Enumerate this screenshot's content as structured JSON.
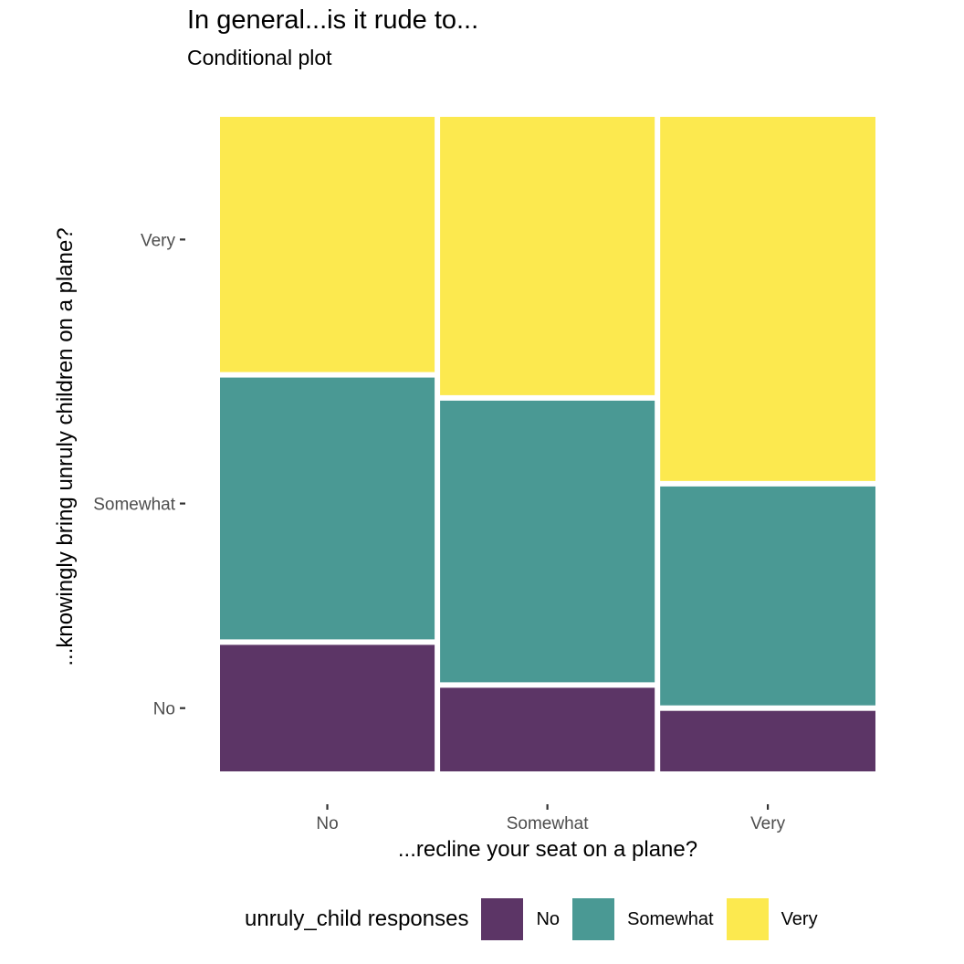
{
  "chart_data": {
    "type": "mosaic",
    "title": "In general...is it rude to...",
    "subtitle": "Conditional plot",
    "xlabel": "...recline your seat on a plane?",
    "ylabel": "...knowingly bring unruly children on a plane?",
    "categories": [
      "No",
      "Somewhat",
      "Very"
    ],
    "column_widths": [
      0.333,
      0.333,
      0.334
    ],
    "y_ticks": [
      {
        "label": "Very",
        "value": 0.81
      },
      {
        "label": "Somewhat",
        "value": 0.41
      },
      {
        "label": "No",
        "value": 0.1
      }
    ],
    "series": [
      {
        "name": "No",
        "color": "#5c3566",
        "values": [
          0.2,
          0.135,
          0.1
        ]
      },
      {
        "name": "Somewhat",
        "color": "#4a9994",
        "values": [
          0.405,
          0.435,
          0.34
        ]
      },
      {
        "name": "Very",
        "color": "#fce94f",
        "values": [
          0.395,
          0.43,
          0.56
        ]
      }
    ],
    "legend": {
      "title": "unruly_child responses",
      "position": "bottom"
    }
  }
}
